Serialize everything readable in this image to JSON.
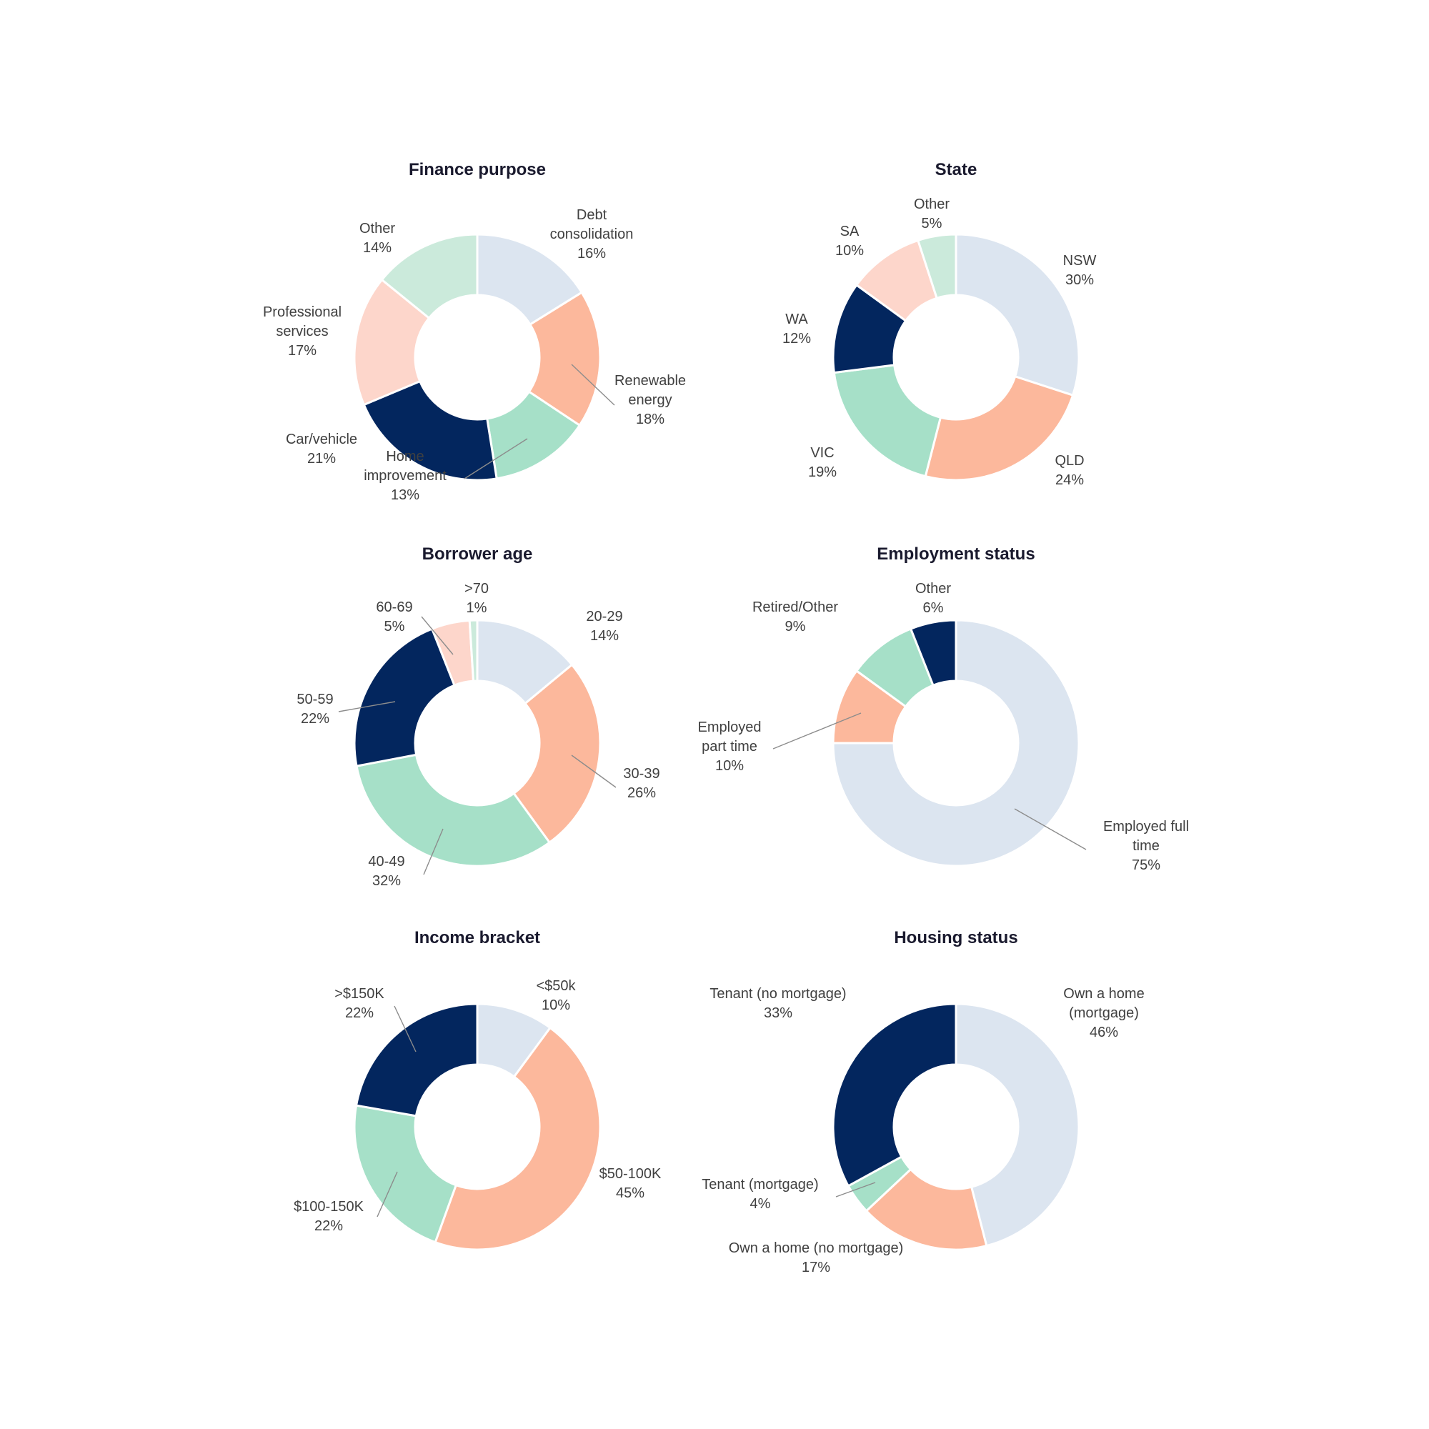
{
  "palette": {
    "light_blue": "#dce5f0",
    "peach": "#fcb89c",
    "mint": "#a6e0c8",
    "navy": "#03265e",
    "light_peach": "#fdd6cb",
    "light_mint": "#cbeadb"
  },
  "chart_data": [
    {
      "type": "pie",
      "title": "Finance purpose",
      "slices": [
        {
          "label": [
            "Debt",
            "consolidation"
          ],
          "value": 16,
          "value_label": "16%",
          "color": "#dce5f0"
        },
        {
          "label": [
            "Renewable",
            "energy"
          ],
          "value": 18,
          "value_label": "18%",
          "color": "#fcb89c"
        },
        {
          "label": [
            "Home",
            "improvement"
          ],
          "value": 13,
          "value_label": "13%",
          "color": "#a6e0c8"
        },
        {
          "label": [
            "Car/vehicle"
          ],
          "value": 21,
          "value_label": "21%",
          "color": "#03265e"
        },
        {
          "label": [
            "Professional",
            "services"
          ],
          "value": 17,
          "value_label": "17%",
          "color": "#fdd6cb"
        },
        {
          "label": [
            "Other"
          ],
          "value": 14,
          "value_label": "14%",
          "color": "#cbeadb"
        }
      ]
    },
    {
      "type": "pie",
      "title": "State",
      "slices": [
        {
          "label": [
            "NSW"
          ],
          "value": 30,
          "value_label": "30%",
          "color": "#dce5f0"
        },
        {
          "label": [
            "QLD"
          ],
          "value": 24,
          "value_label": "24%",
          "color": "#fcb89c"
        },
        {
          "label": [
            "VIC"
          ],
          "value": 19,
          "value_label": "19%",
          "color": "#a6e0c8"
        },
        {
          "label": [
            "WA"
          ],
          "value": 12,
          "value_label": "12%",
          "color": "#03265e"
        },
        {
          "label": [
            "SA"
          ],
          "value": 10,
          "value_label": "10%",
          "color": "#fdd6cb"
        },
        {
          "label": [
            "Other"
          ],
          "value": 5,
          "value_label": "5%",
          "color": "#cbeadb"
        }
      ]
    },
    {
      "type": "pie",
      "title": "Borrower age",
      "slices": [
        {
          "label": [
            "20-29"
          ],
          "value": 14,
          "value_label": "14%",
          "color": "#dce5f0"
        },
        {
          "label": [
            "30-39"
          ],
          "value": 26,
          "value_label": "26%",
          "color": "#fcb89c"
        },
        {
          "label": [
            "40-49"
          ],
          "value": 32,
          "value_label": "32%",
          "color": "#a6e0c8"
        },
        {
          "label": [
            "50-59"
          ],
          "value": 22,
          "value_label": "22%",
          "color": "#03265e"
        },
        {
          "label": [
            "60-69"
          ],
          "value": 5,
          "value_label": "5%",
          "color": "#fdd6cb"
        },
        {
          "label": [
            ">70"
          ],
          "value": 1,
          "value_label": "1%",
          "color": "#cbeadb"
        }
      ]
    },
    {
      "type": "pie",
      "title": "Employment status",
      "slices": [
        {
          "label": [
            "Employed full",
            "time"
          ],
          "value": 75,
          "value_label": "75%",
          "color": "#dce5f0"
        },
        {
          "label": [
            "Employed",
            "part time"
          ],
          "value": 10,
          "value_label": "10%",
          "color": "#fcb89c"
        },
        {
          "label": [
            "Retired/Other"
          ],
          "value": 9,
          "value_label": "9%",
          "color": "#a6e0c8"
        },
        {
          "label": [
            "Other"
          ],
          "value": 6,
          "value_label": "6%",
          "color": "#03265e"
        }
      ]
    },
    {
      "type": "pie",
      "title": "Income bracket",
      "slices": [
        {
          "label": [
            "<$50k"
          ],
          "value": 10,
          "value_label": "10%",
          "color": "#dce5f0"
        },
        {
          "label": [
            "$50-100K"
          ],
          "value": 45,
          "value_label": "45%",
          "color": "#fcb89c"
        },
        {
          "label": [
            "$100-150K"
          ],
          "value": 22,
          "value_label": "22%",
          "color": "#a6e0c8"
        },
        {
          "label": [
            ">$150K"
          ],
          "value": 22,
          "value_label": "22%",
          "color": "#03265e"
        }
      ]
    },
    {
      "type": "pie",
      "title": "Housing status",
      "slices": [
        {
          "label": [
            "Own a home",
            "(mortgage)"
          ],
          "value": 46,
          "value_label": "46%",
          "color": "#dce5f0"
        },
        {
          "label": [
            "Own a home (no mortgage)"
          ],
          "value": 17,
          "value_label": "17%",
          "color": "#fcb89c"
        },
        {
          "label": [
            "Tenant (mortgage)"
          ],
          "value": 4,
          "value_label": "4%",
          "color": "#a6e0c8"
        },
        {
          "label": [
            "Tenant (no mortgage)"
          ],
          "value": 33,
          "value_label": "33%",
          "color": "#03265e"
        }
      ]
    }
  ]
}
